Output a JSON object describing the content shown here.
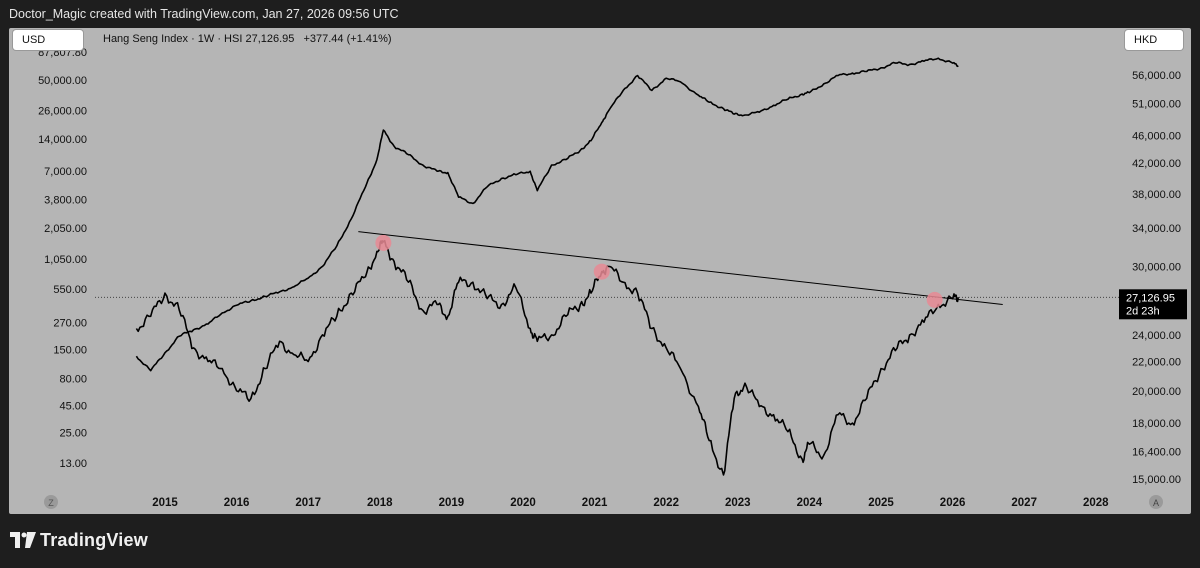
{
  "header": {
    "attribution": "Doctor_Magic created with TradingView.com, Jan 27, 2026 09:56 UTC"
  },
  "controls": {
    "left_currency": "USD",
    "right_currency": "HKD",
    "left_corner_icon": "Z",
    "right_corner_icon": "A"
  },
  "legend": {
    "symbol": "Hang Seng Index · 1W · HSI",
    "last": "27,126.95",
    "change": "+377.44 (+1.41%)"
  },
  "footer": {
    "brand": "TradingView",
    "brand_icon": "tradingview-logo-icon"
  },
  "colors": {
    "background": "#b5b5b5",
    "series": "#000000",
    "highlight": "#e88a94",
    "frame": "#1e1e1e"
  },
  "chart_data": {
    "type": "line",
    "x_axis": {
      "ticks": [
        "2015",
        "2016",
        "2017",
        "2018",
        "2019",
        "2020",
        "2021",
        "2022",
        "2023",
        "2024",
        "2025",
        "2026",
        "2027",
        "2028"
      ]
    },
    "left_axis": {
      "scale": "log",
      "currency": "USD",
      "top_label": "87,807.80",
      "ticks": [
        "50,000.00",
        "26,000.00",
        "14,000.00",
        "7,000.00",
        "3,800.00",
        "2,050.00",
        "1,050.00",
        "550.00",
        "270.00",
        "150.00",
        "80.00",
        "45.00",
        "25.00",
        "13.00"
      ]
    },
    "right_axis": {
      "scale": "log",
      "currency": "HKD",
      "ticks": [
        "56,000.00",
        "51,000.00",
        "46,000.00",
        "42,000.00",
        "38,000.00",
        "34,000.00",
        "30,000.00",
        "24,000.00",
        "22,000.00",
        "20,000.00",
        "18,000.00",
        "16,400.00",
        "15,000.00"
      ]
    },
    "series": [
      {
        "values_axis": "left",
        "role": "overlay",
        "x": [
          2014.6,
          2014.8,
          2015.0,
          2015.2,
          2015.4,
          2015.6,
          2015.8,
          2016.0,
          2016.2,
          2016.4,
          2016.6,
          2016.8,
          2017.0,
          2017.2,
          2017.4,
          2017.6,
          2017.8,
          2017.96,
          2018.05,
          2018.2,
          2018.4,
          2018.6,
          2018.8,
          2018.95,
          2019.1,
          2019.3,
          2019.5,
          2019.7,
          2019.9,
          2020.1,
          2020.2,
          2020.4,
          2020.6,
          2020.8,
          2020.95,
          2021.1,
          2021.2,
          2021.4,
          2021.6,
          2021.8,
          2022.0,
          2022.2,
          2022.45,
          2022.6,
          2022.8,
          2022.95,
          2023.1,
          2023.3,
          2023.5,
          2023.7,
          2023.9,
          2024.0,
          2024.2,
          2024.4,
          2024.6,
          2024.8,
          2025.0,
          2025.2,
          2025.4,
          2025.6,
          2025.8,
          2026.0,
          2026.08
        ],
        "values": [
          130,
          95,
          140,
          200,
          230,
          260,
          330,
          390,
          430,
          470,
          520,
          580,
          700,
          900,
          1400,
          2500,
          5000,
          9000,
          17000,
          12000,
          10000,
          8000,
          7000,
          6800,
          4000,
          3500,
          5000,
          6000,
          6500,
          7000,
          4600,
          8000,
          9000,
          11000,
          13500,
          20000,
          26000,
          40000,
          55000,
          40000,
          52000,
          48000,
          36000,
          31000,
          27000,
          24000,
          23500,
          25000,
          29000,
          33000,
          37000,
          38000,
          46000,
          55000,
          58000,
          60000,
          65000,
          72000,
          70000,
          75000,
          80000,
          72000,
          68000
        ]
      },
      {
        "values_axis": "right",
        "name": "Hang Seng Index",
        "x": [
          2014.6,
          2014.8,
          2015.0,
          2015.2,
          2015.4,
          2015.6,
          2015.8,
          2016.0,
          2016.2,
          2016.4,
          2016.6,
          2016.8,
          2017.0,
          2017.2,
          2017.4,
          2017.6,
          2017.8,
          2017.96,
          2018.05,
          2018.2,
          2018.4,
          2018.6,
          2018.8,
          2018.95,
          2019.1,
          2019.3,
          2019.5,
          2019.7,
          2019.9,
          2020.1,
          2020.2,
          2020.4,
          2020.6,
          2020.8,
          2020.95,
          2021.1,
          2021.2,
          2021.4,
          2021.6,
          2021.8,
          2022.0,
          2022.2,
          2022.45,
          2022.6,
          2022.8,
          2022.95,
          2023.1,
          2023.3,
          2023.5,
          2023.7,
          2023.9,
          2024.0,
          2024.2,
          2024.4,
          2024.6,
          2024.8,
          2025.0,
          2025.2,
          2025.4,
          2025.6,
          2025.8,
          2026.0,
          2026.08
        ],
        "values": [
          24500,
          25500,
          27500,
          26000,
          23000,
          22000,
          21500,
          20000,
          19500,
          21500,
          23500,
          22500,
          22000,
          24000,
          25500,
          27500,
          29000,
          31500,
          32500,
          30500,
          28500,
          26000,
          26500,
          25500,
          28500,
          28500,
          27000,
          26500,
          28000,
          24500,
          23500,
          24000,
          25500,
          26500,
          27500,
          29500,
          30000,
          28500,
          27500,
          24500,
          23000,
          21500,
          19000,
          17000,
          15200,
          19500,
          20500,
          19000,
          18500,
          17500,
          16000,
          16800,
          16200,
          18500,
          18000,
          19500,
          21500,
          22800,
          24000,
          25000,
          26500,
          27000,
          27126.95
        ]
      }
    ],
    "annotations": {
      "trendline": {
        "from": [
          2017.7,
          33600
        ],
        "to": [
          2026.7,
          26500
        ]
      },
      "touch_points": [
        {
          "x": 2018.05,
          "y": 32400
        },
        {
          "x": 2021.1,
          "y": 29500
        },
        {
          "x": 2025.75,
          "y": 26900
        }
      ],
      "last_price": {
        "value": 27126.95,
        "label": "27,126.95",
        "countdown": "2d 23h"
      }
    }
  }
}
